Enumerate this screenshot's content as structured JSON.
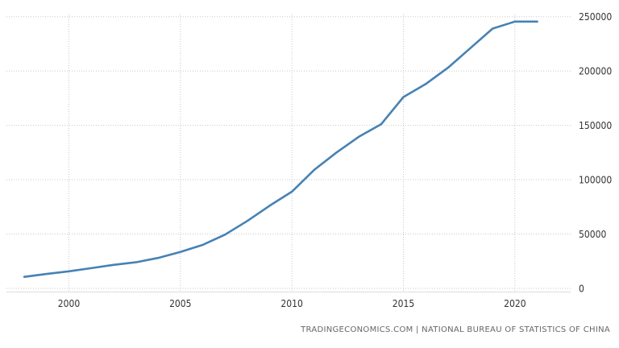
{
  "chart_data": {
    "type": "line",
    "title": "",
    "xlabel": "",
    "ylabel": "",
    "x_ticks": [
      "2000",
      "2005",
      "2010",
      "2015",
      "2020"
    ],
    "y_ticks": [
      "0",
      "50000",
      "100000",
      "150000",
      "200000",
      "250000"
    ],
    "xlim": [
      1997.2,
      2022.5
    ],
    "ylim": [
      -3000,
      252000
    ],
    "grid": true,
    "legend": "none",
    "y_axis_side": "right",
    "series": [
      {
        "color": "#4682b4",
        "x": [
          1998,
          1999,
          2000,
          2001,
          2002,
          2003,
          2004,
          2005,
          2006,
          2007,
          2008,
          2009,
          2010,
          2011,
          2012,
          2013,
          2014,
          2015,
          2016,
          2017,
          2018,
          2019,
          2020,
          2021
        ],
        "y": [
          10600,
          13200,
          15700,
          18600,
          21600,
          24000,
          28000,
          33500,
          40000,
          49400,
          62000,
          76000,
          89000,
          109000,
          125000,
          139500,
          151000,
          176000,
          188000,
          203000,
          221000,
          239000,
          245500,
          245500
        ]
      }
    ]
  },
  "source_text": "TRADINGECONOMICS.COM  |  NATIONAL BUREAU OF STATISTICS OF CHINA"
}
